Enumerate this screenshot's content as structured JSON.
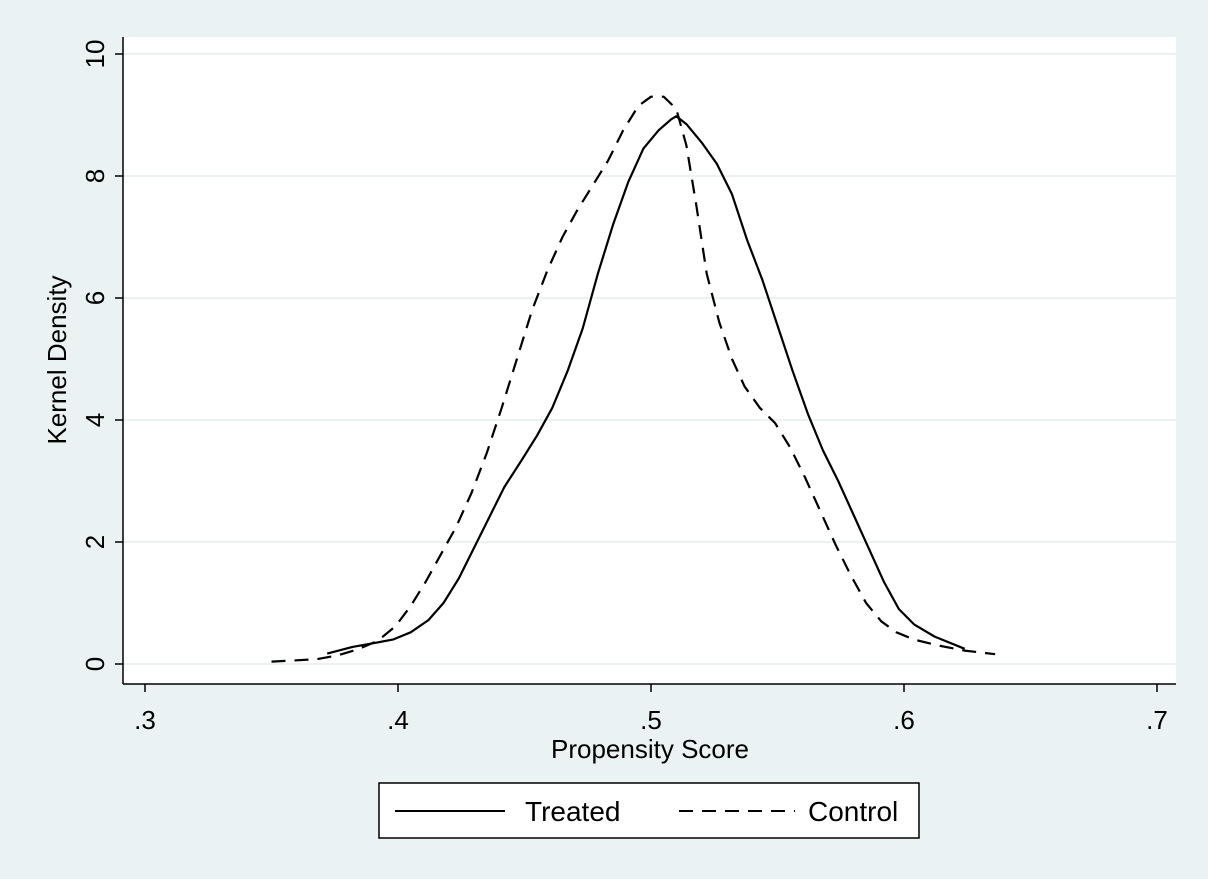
{
  "chart_data": {
    "type": "line",
    "xlabel": "Propensity Score",
    "ylabel": "Kernel Density",
    "xlim": [
      0.3,
      0.7
    ],
    "ylim": [
      0,
      10
    ],
    "xticks": [
      0.3,
      0.4,
      0.5,
      0.6,
      0.7
    ],
    "xtick_labels": [
      ".3",
      ".4",
      ".5",
      ".6",
      ".7"
    ],
    "yticks": [
      0,
      2,
      4,
      6,
      8,
      10
    ],
    "ytick_labels": [
      "0",
      "2",
      "4",
      "6",
      "8",
      "10"
    ],
    "grid": true,
    "legend_position": "bottom",
    "colors": {
      "background": "#eaf2f3",
      "plot_area": "#ffffff",
      "gridline": "#e6eeef",
      "line": "#000000"
    },
    "series": [
      {
        "name": "Treated",
        "style": "solid",
        "points": [
          [
            0.372,
            0.17
          ],
          [
            0.382,
            0.28
          ],
          [
            0.39,
            0.34
          ],
          [
            0.398,
            0.4
          ],
          [
            0.405,
            0.52
          ],
          [
            0.412,
            0.72
          ],
          [
            0.418,
            1.0
          ],
          [
            0.424,
            1.4
          ],
          [
            0.43,
            1.9
          ],
          [
            0.436,
            2.4
          ],
          [
            0.442,
            2.9
          ],
          [
            0.449,
            3.35
          ],
          [
            0.455,
            3.75
          ],
          [
            0.461,
            4.2
          ],
          [
            0.467,
            4.8
          ],
          [
            0.473,
            5.5
          ],
          [
            0.479,
            6.4
          ],
          [
            0.485,
            7.2
          ],
          [
            0.491,
            7.9
          ],
          [
            0.497,
            8.45
          ],
          [
            0.503,
            8.75
          ],
          [
            0.508,
            8.93
          ],
          [
            0.51,
            8.98
          ],
          [
            0.514,
            8.85
          ],
          [
            0.52,
            8.55
          ],
          [
            0.526,
            8.2
          ],
          [
            0.532,
            7.7
          ],
          [
            0.538,
            6.95
          ],
          [
            0.544,
            6.3
          ],
          [
            0.55,
            5.55
          ],
          [
            0.556,
            4.8
          ],
          [
            0.562,
            4.1
          ],
          [
            0.568,
            3.5
          ],
          [
            0.574,
            3.0
          ],
          [
            0.58,
            2.45
          ],
          [
            0.586,
            1.9
          ],
          [
            0.592,
            1.35
          ],
          [
            0.598,
            0.9
          ],
          [
            0.604,
            0.65
          ],
          [
            0.612,
            0.45
          ],
          [
            0.624,
            0.25
          ]
        ]
      },
      {
        "name": "Control",
        "style": "dashed",
        "points": [
          [
            0.35,
            0.04
          ],
          [
            0.36,
            0.06
          ],
          [
            0.368,
            0.08
          ],
          [
            0.376,
            0.14
          ],
          [
            0.384,
            0.24
          ],
          [
            0.392,
            0.38
          ],
          [
            0.399,
            0.62
          ],
          [
            0.405,
            0.95
          ],
          [
            0.411,
            1.35
          ],
          [
            0.417,
            1.8
          ],
          [
            0.423,
            2.25
          ],
          [
            0.429,
            2.8
          ],
          [
            0.435,
            3.45
          ],
          [
            0.441,
            4.2
          ],
          [
            0.447,
            5.0
          ],
          [
            0.453,
            5.8
          ],
          [
            0.459,
            6.45
          ],
          [
            0.465,
            7.0
          ],
          [
            0.471,
            7.45
          ],
          [
            0.477,
            7.85
          ],
          [
            0.483,
            8.25
          ],
          [
            0.489,
            8.75
          ],
          [
            0.495,
            9.15
          ],
          [
            0.5,
            9.3
          ],
          [
            0.505,
            9.3
          ],
          [
            0.51,
            9.1
          ],
          [
            0.514,
            8.5
          ],
          [
            0.518,
            7.5
          ],
          [
            0.522,
            6.4
          ],
          [
            0.527,
            5.6
          ],
          [
            0.532,
            5.0
          ],
          [
            0.537,
            4.55
          ],
          [
            0.543,
            4.2
          ],
          [
            0.549,
            3.95
          ],
          [
            0.555,
            3.55
          ],
          [
            0.561,
            3.05
          ],
          [
            0.567,
            2.5
          ],
          [
            0.573,
            1.95
          ],
          [
            0.579,
            1.45
          ],
          [
            0.585,
            1.0
          ],
          [
            0.591,
            0.7
          ],
          [
            0.597,
            0.52
          ],
          [
            0.604,
            0.4
          ],
          [
            0.614,
            0.3
          ],
          [
            0.624,
            0.22
          ],
          [
            0.636,
            0.16
          ]
        ]
      }
    ]
  }
}
